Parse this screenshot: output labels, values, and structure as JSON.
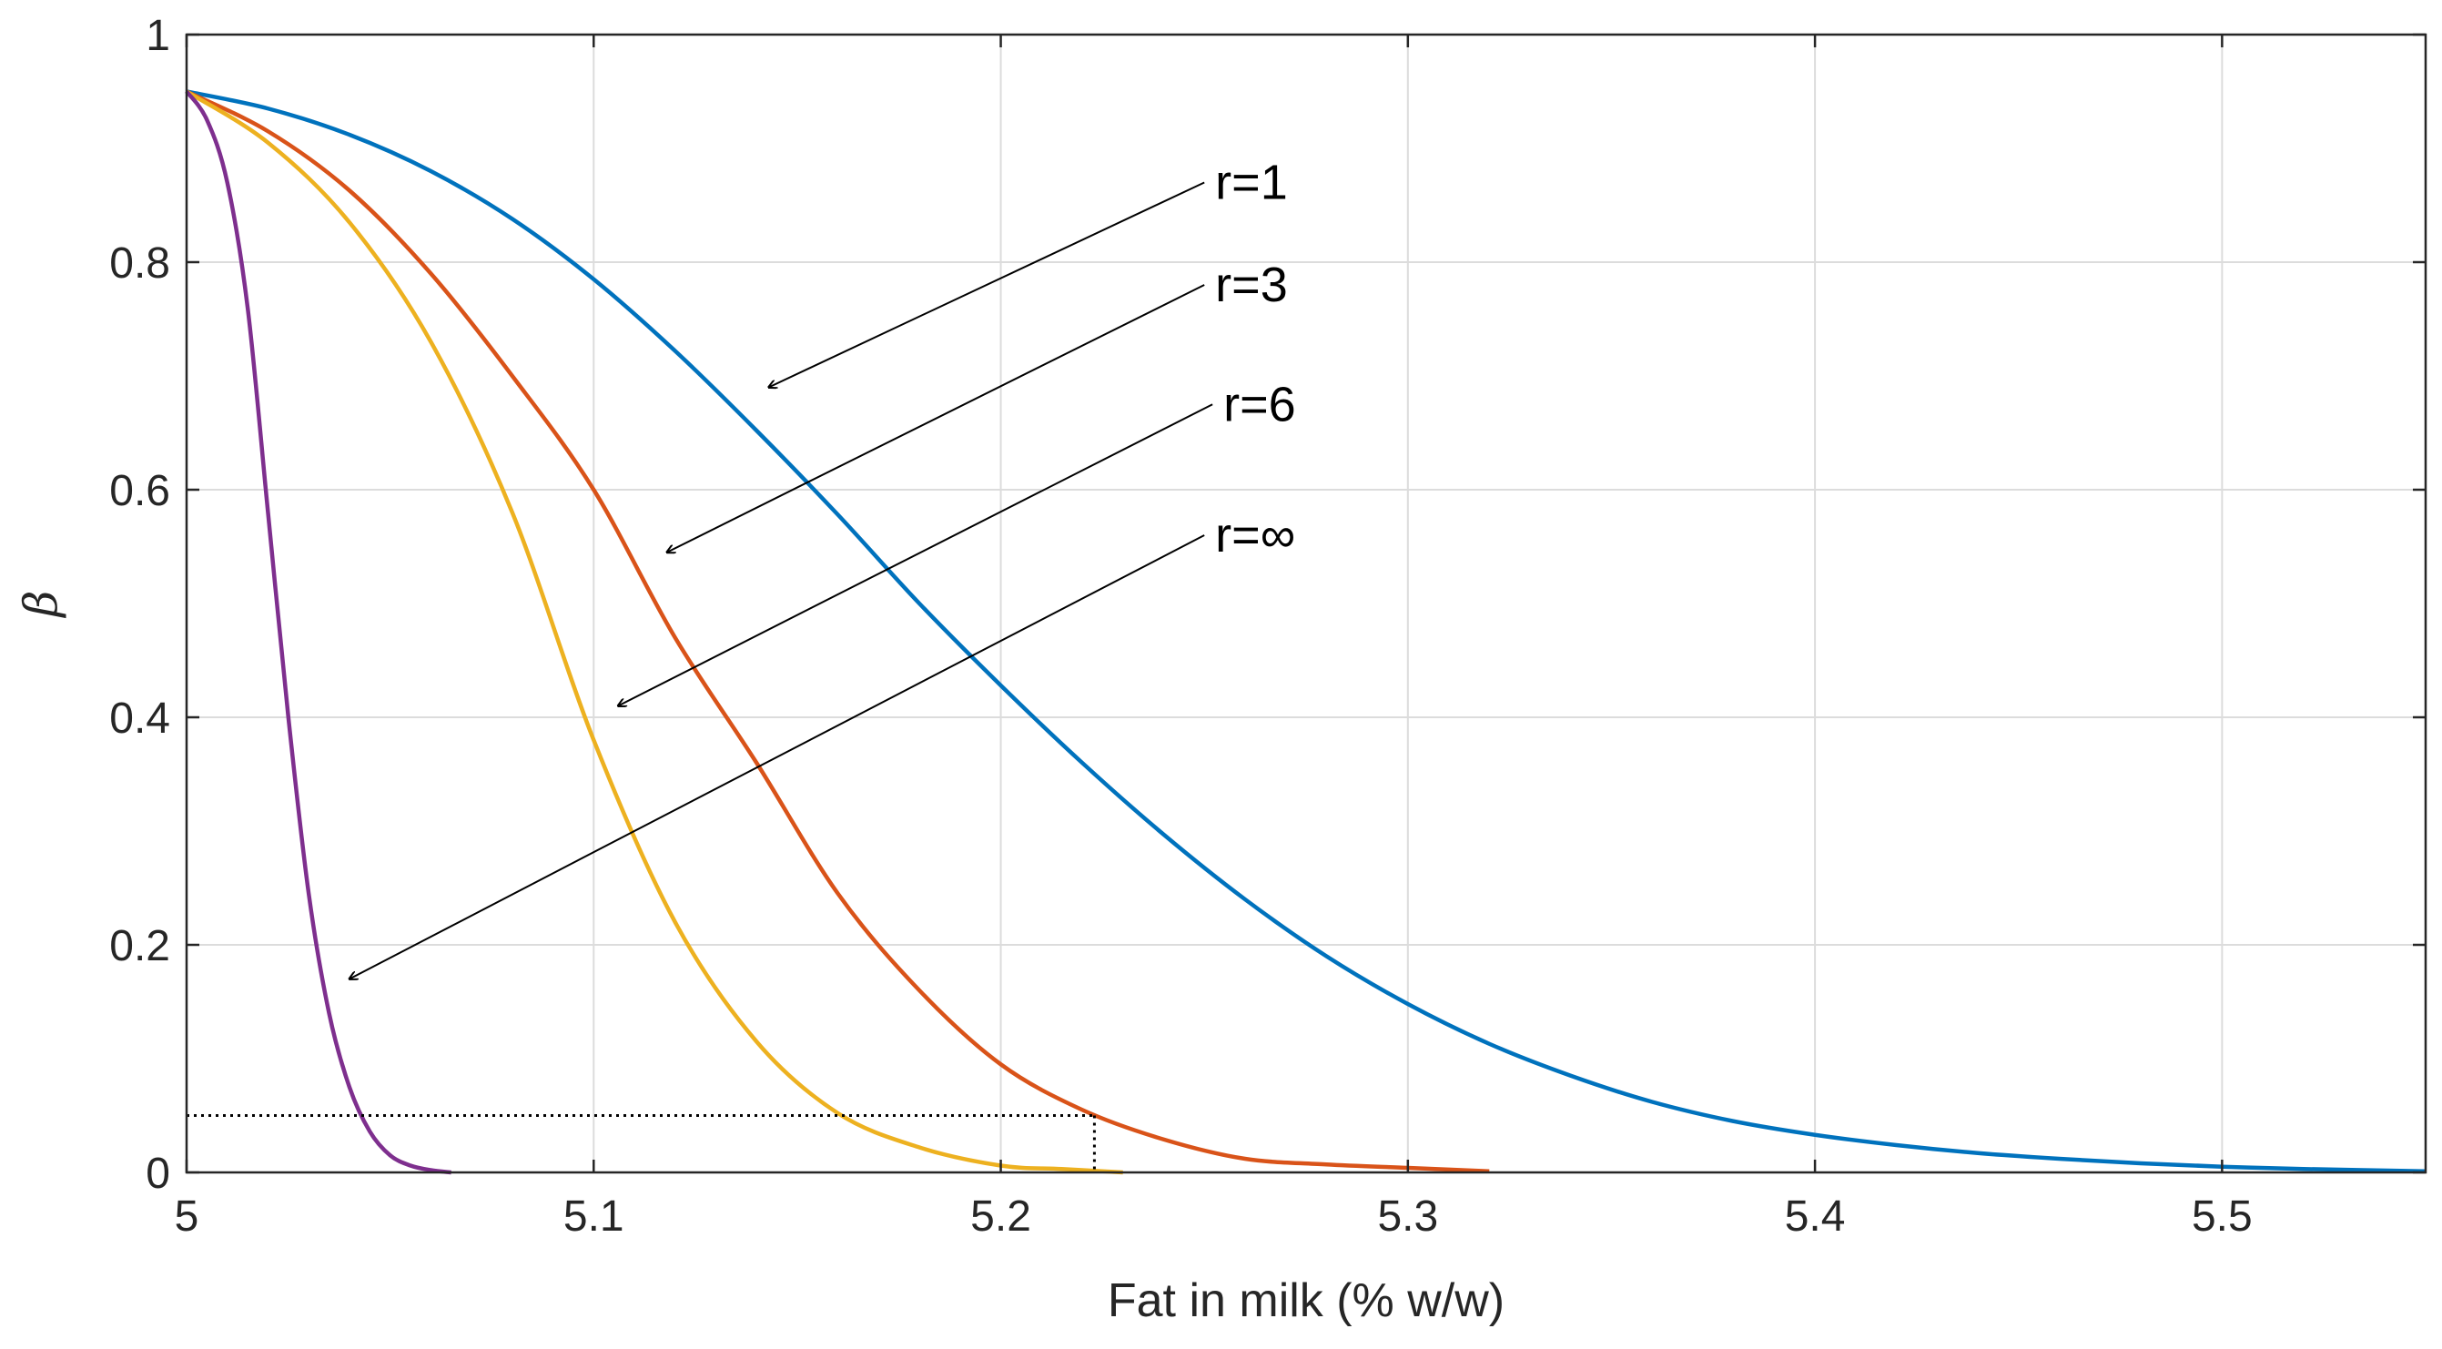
{
  "chart_data": {
    "type": "line",
    "title": "",
    "xlabel": "Fat in milk (% w/w)",
    "ylabel": "β",
    "xlim": [
      5,
      5.55
    ],
    "ylim": [
      0,
      1
    ],
    "grid": true,
    "x_ticks": [
      {
        "value": 5,
        "label": "5"
      },
      {
        "value": 5.1,
        "label": "5.1"
      },
      {
        "value": 5.2,
        "label": "5.2"
      },
      {
        "value": 5.3,
        "label": "5.3"
      },
      {
        "value": 5.4,
        "label": "5.4"
      },
      {
        "value": 5.5,
        "label": "5.5"
      }
    ],
    "y_ticks": [
      {
        "value": 0,
        "label": "0"
      },
      {
        "value": 0.2,
        "label": "0.2"
      },
      {
        "value": 0.4,
        "label": "0.4"
      },
      {
        "value": 0.6,
        "label": "0.6"
      },
      {
        "value": 0.8,
        "label": "0.8"
      },
      {
        "value": 1,
        "label": "1"
      }
    ],
    "series": [
      {
        "name": "r=1",
        "color": "#0072BD",
        "x": [
          5.0,
          5.02,
          5.04,
          5.06,
          5.08,
          5.1,
          5.12,
          5.14,
          5.16,
          5.18,
          5.2,
          5.22,
          5.24,
          5.26,
          5.28,
          5.3,
          5.32,
          5.34,
          5.36,
          5.38,
          5.4,
          5.42,
          5.44,
          5.46,
          5.48,
          5.5,
          5.52,
          5.55
        ],
        "values": [
          0.95,
          0.935,
          0.912,
          0.88,
          0.838,
          0.785,
          0.722,
          0.652,
          0.578,
          0.5,
          0.428,
          0.36,
          0.297,
          0.24,
          0.19,
          0.148,
          0.113,
          0.085,
          0.062,
          0.045,
          0.033,
          0.024,
          0.017,
          0.012,
          0.008,
          0.005,
          0.003,
          0.001
        ]
      },
      {
        "name": "r=3",
        "color": "#D95319",
        "x": [
          5.0,
          5.02,
          5.04,
          5.06,
          5.08,
          5.1,
          5.12,
          5.14,
          5.16,
          5.18,
          5.2,
          5.22,
          5.24,
          5.26,
          5.28,
          5.3,
          5.32
        ],
        "values": [
          0.95,
          0.915,
          0.863,
          0.79,
          0.7,
          0.6,
          0.47,
          0.36,
          0.245,
          0.16,
          0.095,
          0.055,
          0.029,
          0.012,
          0.007,
          0.004,
          0.001
        ]
      },
      {
        "name": "r=6",
        "color": "#EDB120",
        "x": [
          5.0,
          5.02,
          5.04,
          5.06,
          5.08,
          5.1,
          5.12,
          5.14,
          5.16,
          5.18,
          5.2,
          5.215,
          5.23
        ],
        "values": [
          0.95,
          0.905,
          0.835,
          0.73,
          0.58,
          0.38,
          0.22,
          0.115,
          0.052,
          0.022,
          0.006,
          0.003,
          0.0
        ]
      },
      {
        "name": "r=∞",
        "color": "#7E2F8E",
        "x": [
          5.0,
          5.005,
          5.01,
          5.015,
          5.02,
          5.025,
          5.03,
          5.035,
          5.04,
          5.045,
          5.05,
          5.055,
          5.06,
          5.065
        ],
        "values": [
          0.95,
          0.925,
          0.87,
          0.76,
          0.58,
          0.4,
          0.245,
          0.14,
          0.075,
          0.036,
          0.015,
          0.006,
          0.002,
          0.0
        ]
      }
    ],
    "reference_line": {
      "x": 5.223,
      "y": 0.05,
      "style": "dotted"
    },
    "annotations": [
      {
        "text": "r=1",
        "arrow_from": [
          5.25,
          0.87
        ],
        "arrow_to": [
          5.143,
          0.69
        ]
      },
      {
        "text": "r=3",
        "arrow_from": [
          5.25,
          0.78
        ],
        "arrow_to": [
          5.118,
          0.545
        ]
      },
      {
        "text": "r=6",
        "arrow_from": [
          5.252,
          0.675
        ],
        "arrow_to": [
          5.106,
          0.41
        ]
      },
      {
        "text": "r=∞",
        "arrow_from": [
          5.25,
          0.56
        ],
        "arrow_to": [
          5.04,
          0.17
        ]
      }
    ]
  }
}
